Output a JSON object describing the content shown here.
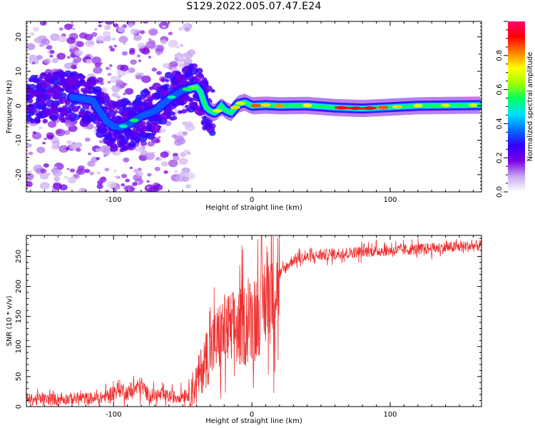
{
  "title": "S129.2022.005.07.47.E24",
  "chart_data": [
    {
      "type": "heatmap",
      "name": "spectrogram",
      "xlabel": "Height of straight line (km)",
      "ylabel": "Frequency (Hz)",
      "xlim": [
        -163,
        166
      ],
      "ylim": [
        -25,
        24.5
      ],
      "x_ticks": [
        -100,
        0,
        100
      ],
      "y_ticks": [
        -20,
        -10,
        0,
        10,
        20
      ],
      "ridge": {
        "x": [
          -130,
          -115,
          -105,
          -100,
          -95,
          -90,
          -80,
          -70,
          -60,
          -50,
          -45,
          -40,
          -37,
          -35,
          -33,
          -30,
          -27,
          -25,
          -22,
          -20,
          -18,
          -15,
          -10,
          -5,
          0,
          10,
          20,
          40,
          60,
          80,
          100,
          120,
          166
        ],
        "freq": [
          2.5,
          1.5,
          -4.5,
          -6,
          -6.2,
          -5.5,
          -3,
          -1.5,
          2,
          4.5,
          5,
          5.5,
          4,
          1.5,
          -0.5,
          -1.5,
          -2,
          -1.5,
          0,
          -1,
          -1.5,
          -2,
          0.5,
          1,
          0,
          0.2,
          0,
          0.1,
          -0.5,
          -0.8,
          -0.4,
          0,
          0.2
        ]
      },
      "colorbar": {
        "label": "Normalized spectral amplitude",
        "ticks": [
          0.0,
          0.2,
          0.4,
          0.6,
          0.8
        ],
        "range": [
          0,
          1
        ],
        "colors": [
          "#ffffff",
          "#c8a8f0",
          "#7a00e0",
          "#3000ff",
          "#0070ff",
          "#00e0ff",
          "#00ff60",
          "#a0ff00",
          "#ffff00",
          "#ff8000",
          "#ff0000",
          "#ff0070"
        ]
      }
    },
    {
      "type": "line",
      "name": "snr",
      "xlabel": "Height of straight line (km)",
      "ylabel": "SNR (10 * v/v)",
      "xlim": [
        -163,
        166
      ],
      "ylim": [
        0,
        285
      ],
      "x_ticks": [
        -100,
        0,
        100
      ],
      "y_ticks": [
        0,
        50,
        100,
        150,
        200,
        250
      ],
      "color": "#ee3030",
      "trend": {
        "x": [
          -163,
          -110,
          -105,
          -95,
          -90,
          -80,
          -75,
          -65,
          -55,
          -45,
          -40,
          -35,
          -30,
          -25,
          -20,
          -10,
          0,
          5,
          10,
          15,
          20,
          30,
          50,
          80,
          120,
          166
        ],
        "y": [
          12,
          14,
          18,
          30,
          22,
          35,
          20,
          18,
          16,
          22,
          40,
          70,
          95,
          110,
          125,
          130,
          145,
          160,
          180,
          200,
          220,
          245,
          252,
          258,
          262,
          268
        ]
      }
    }
  ]
}
